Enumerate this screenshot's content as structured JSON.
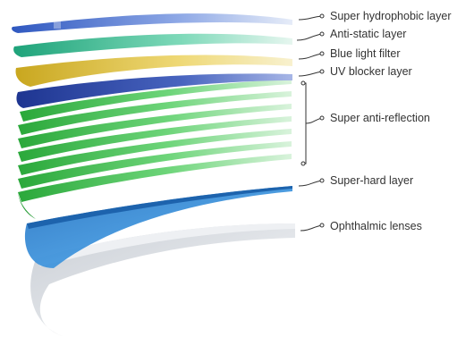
{
  "labels": {
    "super_hydrophobic": "Super hydrophobic layer",
    "anti_static": "Anti-static layer",
    "blue_light": "Blue light filter",
    "uv_blocker": "UV blocker layer",
    "super_anti_reflection": "Super anti-reflection",
    "super_hard": "Super-hard layer",
    "ophthalmic": "Ophthalmic lenses"
  },
  "colors": {
    "hydrophobic": "#5a7fd0",
    "anti_static": "#4fc39c",
    "blue_light": "#e3c64b",
    "uv_blocker": "#2f4aa8",
    "anti_reflection": "#4cc25a",
    "super_hard": "#2f86d4",
    "lens": "#d7dbe0",
    "text": "#333333"
  }
}
